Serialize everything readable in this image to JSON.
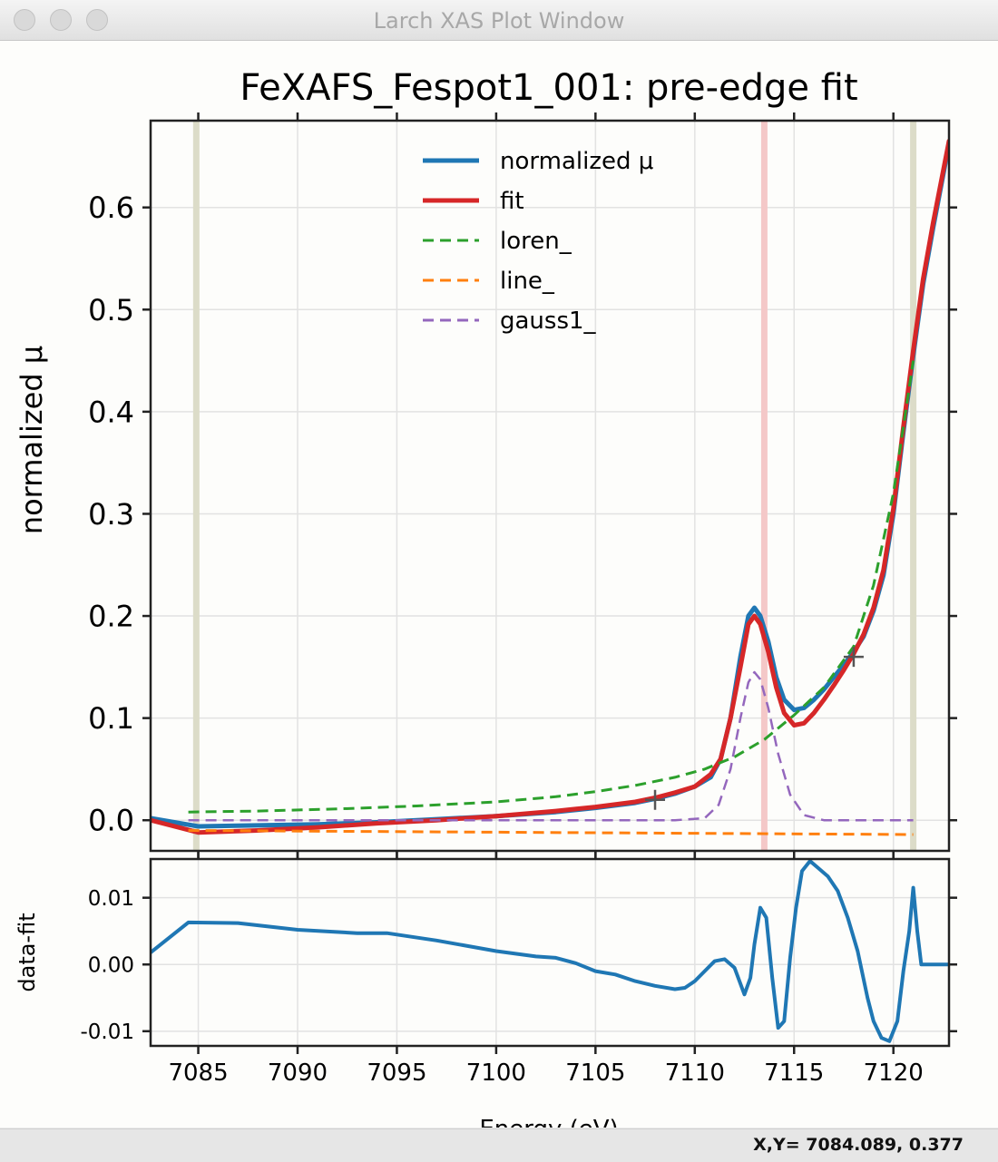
{
  "window": {
    "title": "Larch XAS Plot Window"
  },
  "status": {
    "coords": "X,Y= 7084.089, 0.377"
  },
  "colors": {
    "data": "#1f77b4",
    "fit": "#d62728",
    "loren": "#2ca02c",
    "line": "#ff7f0e",
    "gauss": "#9467bd",
    "range_marker": "#dcdcc8",
    "centroid_marker": "#f4c8c8"
  },
  "chart_data": [
    {
      "type": "line",
      "title": "FeXAFS_Fespot1_001:  pre-edge fit",
      "xlabel": "",
      "ylabel": "normalized μ",
      "xlim": [
        7082.6,
        7122.8
      ],
      "ylim": [
        -0.03,
        0.685
      ],
      "grid": true,
      "legend_position": "top-center",
      "yticks": [
        0.0,
        0.1,
        0.2,
        0.3,
        0.4,
        0.5,
        0.6
      ],
      "xticks": [
        7085,
        7090,
        7095,
        7100,
        7105,
        7110,
        7115,
        7120
      ],
      "ytick_labels": [
        "0.0",
        "0.1",
        "0.2",
        "0.3",
        "0.4",
        "0.5",
        "0.6"
      ],
      "vlines": [
        {
          "x": 7084.9,
          "role": "range-low"
        },
        {
          "x": 7113.5,
          "role": "centroid"
        },
        {
          "x": 7121.0,
          "role": "range-high"
        }
      ],
      "markers": [
        {
          "x": 7108.0,
          "y": 0.02
        },
        {
          "x": 7118.0,
          "y": 0.16
        }
      ],
      "series": [
        {
          "name": "normalized μ",
          "style": "solid",
          "width": 5,
          "color": "#1f77b4",
          "x": [
            7082.6,
            7085,
            7088,
            7091,
            7094,
            7097,
            7100,
            7103,
            7105,
            7107,
            7108,
            7109,
            7110,
            7110.8,
            7111.3,
            7111.8,
            7112.3,
            7112.7,
            7113.0,
            7113.3,
            7113.7,
            7114.1,
            7114.5,
            7115.0,
            7115.5,
            7116.0,
            7116.5,
            7117.0,
            7117.5,
            7118.0,
            7118.5,
            7119.0,
            7119.5,
            7120.0,
            7120.5,
            7121.0,
            7121.5,
            7122.0,
            7122.8
          ],
          "y": [
            0.002,
            -0.006,
            -0.005,
            -0.004,
            -0.002,
            0.001,
            0.004,
            0.008,
            0.012,
            0.017,
            0.021,
            0.026,
            0.033,
            0.042,
            0.06,
            0.1,
            0.16,
            0.2,
            0.208,
            0.2,
            0.175,
            0.14,
            0.118,
            0.108,
            0.11,
            0.118,
            0.128,
            0.14,
            0.152,
            0.165,
            0.18,
            0.205,
            0.24,
            0.3,
            0.38,
            0.455,
            0.525,
            0.58,
            0.662
          ]
        },
        {
          "name": "fit",
          "style": "solid",
          "width": 5,
          "color": "#d62728",
          "x": [
            7082.6,
            7085,
            7088,
            7091,
            7094,
            7097,
            7100,
            7103,
            7105,
            7107,
            7108,
            7109,
            7110,
            7110.8,
            7111.3,
            7111.8,
            7112.3,
            7112.7,
            7113.0,
            7113.3,
            7113.7,
            7114.1,
            7114.5,
            7115.0,
            7115.5,
            7116.0,
            7116.5,
            7117.0,
            7117.5,
            7118.0,
            7118.5,
            7119.0,
            7119.5,
            7120.0,
            7120.5,
            7121.0,
            7121.5,
            7122.0,
            7122.8
          ],
          "y": [
            0.0,
            -0.012,
            -0.01,
            -0.007,
            -0.003,
            0.0,
            0.004,
            0.009,
            0.013,
            0.018,
            0.022,
            0.027,
            0.033,
            0.045,
            0.06,
            0.1,
            0.15,
            0.192,
            0.2,
            0.192,
            0.165,
            0.13,
            0.105,
            0.093,
            0.095,
            0.105,
            0.118,
            0.132,
            0.147,
            0.163,
            0.182,
            0.208,
            0.245,
            0.305,
            0.385,
            0.46,
            0.53,
            0.585,
            0.665
          ]
        },
        {
          "name": "loren_",
          "style": "dashed",
          "width": 3,
          "color": "#2ca02c",
          "x": [
            7084.5,
            7088,
            7092,
            7096,
            7100,
            7103,
            7105,
            7107,
            7109,
            7110.5,
            7112,
            7113.5,
            7115,
            7116.5,
            7118,
            7119,
            7120,
            7121
          ],
          "y": [
            0.008,
            0.009,
            0.011,
            0.014,
            0.018,
            0.023,
            0.028,
            0.034,
            0.042,
            0.05,
            0.062,
            0.079,
            0.103,
            0.13,
            0.17,
            0.23,
            0.32,
            0.45
          ]
        },
        {
          "name": "line_",
          "style": "dashed",
          "width": 3,
          "color": "#ff7f0e",
          "x": [
            7084.5,
            7121
          ],
          "y": [
            -0.01,
            -0.014
          ]
        },
        {
          "name": "gauss1_",
          "style": "dashed",
          "width": 2.5,
          "color": "#9467bd",
          "x": [
            7084.5,
            7109,
            7110.5,
            7111.2,
            7111.8,
            7112.3,
            7112.7,
            7113.0,
            7113.3,
            7113.7,
            7114.2,
            7114.8,
            7115.5,
            7116.5,
            7121
          ],
          "y": [
            0.0,
            0.0,
            0.002,
            0.015,
            0.05,
            0.1,
            0.135,
            0.145,
            0.138,
            0.11,
            0.065,
            0.025,
            0.005,
            0.0,
            0.0
          ]
        }
      ]
    },
    {
      "type": "line",
      "xlabel": "Energy (eV)",
      "ylabel": "data-fit",
      "xlim": [
        7082.6,
        7122.8
      ],
      "ylim": [
        -0.0122,
        0.0158
      ],
      "grid": true,
      "yticks": [
        -0.01,
        0.0,
        0.01
      ],
      "xticks": [
        7085,
        7090,
        7095,
        7100,
        7105,
        7110,
        7115,
        7120
      ],
      "ytick_labels": [
        "-0.01",
        "0.00",
        "0.01"
      ],
      "xtick_labels": [
        "7085",
        "7090",
        "7095",
        "7100",
        "7105",
        "7110",
        "7115",
        "7120"
      ],
      "series": [
        {
          "name": "",
          "style": "solid",
          "width": 4,
          "color": "#1f77b4",
          "x": [
            7082.6,
            7084.5,
            7087,
            7090,
            7093,
            7094.5,
            7097,
            7100,
            7102,
            7103,
            7104,
            7105,
            7106,
            7107,
            7108,
            7109,
            7109.5,
            7110,
            7110.5,
            7111,
            7111.5,
            7112,
            7112.5,
            7112.8,
            7113.0,
            7113.3,
            7113.6,
            7113.9,
            7114.2,
            7114.5,
            7114.8,
            7115.1,
            7115.4,
            7115.8,
            7116.2,
            7116.7,
            7117.2,
            7117.7,
            7118.2,
            7118.7,
            7119.0,
            7119.4,
            7119.8,
            7120.2,
            7120.5,
            7120.8,
            7121.0,
            7121.2,
            7121.4,
            7122.8
          ],
          "y": [
            0.0018,
            0.0063,
            0.0062,
            0.0052,
            0.0047,
            0.0047,
            0.0036,
            0.002,
            0.0012,
            0.001,
            0.0002,
            -0.001,
            -0.0015,
            -0.0025,
            -0.0032,
            -0.0037,
            -0.0035,
            -0.0025,
            -0.001,
            0.0005,
            0.0008,
            -0.0005,
            -0.0045,
            -0.002,
            0.003,
            0.0085,
            0.007,
            -0.002,
            -0.0095,
            -0.0085,
            0.001,
            0.0085,
            0.014,
            0.0155,
            0.0145,
            0.0132,
            0.011,
            0.007,
            0.002,
            -0.005,
            -0.0085,
            -0.011,
            -0.0115,
            -0.0085,
            -0.001,
            0.005,
            0.0115,
            0.005,
            0.0,
            0.0
          ]
        }
      ]
    }
  ]
}
